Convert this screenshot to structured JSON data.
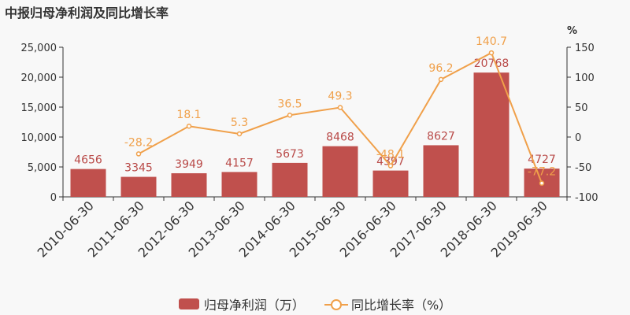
{
  "title": "中报归母净利润及同比增长率",
  "chart_data": {
    "type": "bar",
    "categories": [
      "2010-06-30",
      "2011-06-30",
      "2012-06-30",
      "2013-06-30",
      "2014-06-30",
      "2015-06-30",
      "2016-06-30",
      "2017-06-30",
      "2018-06-30",
      "2019-06-30"
    ],
    "series": [
      {
        "name": "归母净利润（万）",
        "type": "bar",
        "axis": "left",
        "values": [
          4656,
          3345,
          3949,
          4157,
          5673,
          8468,
          4397,
          8627,
          20768,
          4727
        ],
        "labels": [
          "4656",
          "3345",
          "3949",
          "4157",
          "5673",
          "8468",
          "4397",
          "8627",
          "20768",
          "4727"
        ],
        "color": "#c0504d"
      },
      {
        "name": "同比增长率（%）",
        "type": "line",
        "axis": "right",
        "values": [
          null,
          -28.2,
          18.1,
          5.3,
          36.5,
          49.3,
          -48.1,
          96.2,
          140.7,
          -77.2
        ],
        "labels": [
          "",
          "-28.2",
          "18.1",
          "5.3",
          "36.5",
          "49.3",
          "-48.1",
          "96.2",
          "140.7",
          "-77.2"
        ],
        "color": "#f0a04a"
      }
    ],
    "left_axis": {
      "min": 0,
      "max": 25000,
      "ticks": [
        "0",
        "5,000",
        "10,000",
        "15,000",
        "20,000",
        "25,000"
      ]
    },
    "right_axis": {
      "min": -100,
      "max": 150,
      "unit": "%",
      "ticks": [
        "-100",
        "-50",
        "0",
        "50",
        "100",
        "150"
      ]
    },
    "legend": "bottom"
  },
  "legend": {
    "bar_label": "归母净利润（万）",
    "line_label": "同比增长率（%）"
  }
}
